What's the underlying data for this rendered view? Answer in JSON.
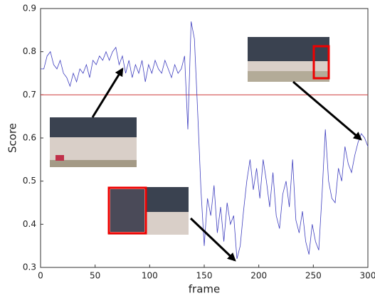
{
  "chart_data": {
    "type": "line",
    "x_label": "frame",
    "y_label": "Score",
    "x": [
      0,
      3,
      6,
      9,
      12,
      15,
      18,
      21,
      24,
      27,
      30,
      33,
      36,
      39,
      42,
      45,
      48,
      51,
      54,
      57,
      60,
      63,
      66,
      69,
      72,
      75,
      78,
      81,
      84,
      87,
      90,
      93,
      96,
      99,
      102,
      105,
      108,
      111,
      114,
      117,
      120,
      123,
      126,
      129,
      132,
      135,
      138,
      141,
      144,
      147,
      150,
      153,
      156,
      159,
      162,
      165,
      168,
      171,
      174,
      177,
      180,
      183,
      186,
      189,
      192,
      195,
      198,
      201,
      204,
      207,
      210,
      213,
      216,
      219,
      222,
      225,
      228,
      231,
      234,
      237,
      240,
      243,
      246,
      249,
      252,
      255,
      258,
      261,
      264,
      267,
      270,
      273,
      276,
      279,
      282,
      285,
      288,
      291,
      294,
      297,
      300
    ],
    "series": [
      {
        "color": "#3f3fbf",
        "values": [
          0.76,
          0.76,
          0.79,
          0.8,
          0.77,
          0.76,
          0.78,
          0.75,
          0.74,
          0.72,
          0.75,
          0.73,
          0.76,
          0.75,
          0.77,
          0.74,
          0.78,
          0.77,
          0.79,
          0.78,
          0.8,
          0.78,
          0.8,
          0.81,
          0.77,
          0.79,
          0.75,
          0.78,
          0.74,
          0.77,
          0.75,
          0.78,
          0.73,
          0.77,
          0.75,
          0.78,
          0.76,
          0.75,
          0.78,
          0.76,
          0.74,
          0.77,
          0.75,
          0.76,
          0.79,
          0.62,
          0.87,
          0.83,
          0.66,
          0.48,
          0.35,
          0.46,
          0.42,
          0.49,
          0.38,
          0.44,
          0.36,
          0.45,
          0.4,
          0.42,
          0.32,
          0.35,
          0.43,
          0.5,
          0.55,
          0.48,
          0.53,
          0.46,
          0.55,
          0.5,
          0.44,
          0.52,
          0.42,
          0.39,
          0.47,
          0.5,
          0.44,
          0.55,
          0.41,
          0.38,
          0.43,
          0.36,
          0.33,
          0.4,
          0.36,
          0.34,
          0.47,
          0.62,
          0.5,
          0.46,
          0.45,
          0.53,
          0.5,
          0.58,
          0.54,
          0.52,
          0.56,
          0.59,
          0.61,
          0.6,
          0.58
        ]
      }
    ],
    "threshold": {
      "value": 0.7,
      "color": "#d04040"
    },
    "xlim": [
      0,
      300
    ],
    "xticks": [
      0,
      50,
      100,
      150,
      200,
      250,
      300
    ],
    "ylim": [
      0.3,
      0.9
    ],
    "yticks": [
      0.3,
      0.4,
      0.5,
      0.6,
      0.7,
      0.8,
      0.9
    ]
  }
}
